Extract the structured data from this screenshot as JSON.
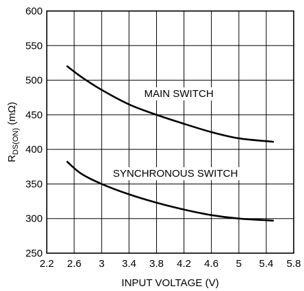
{
  "chart_data": {
    "type": "line",
    "title": "",
    "xlabel": "INPUT VOLTAGE (V)",
    "ylabel_parts": [
      "R",
      "DS(ON)",
      " (mΩ)"
    ],
    "xlim": [
      2.2,
      5.8
    ],
    "ylim": [
      250,
      600
    ],
    "grid": true,
    "xticks": [
      "2.2",
      "2.6",
      "3",
      "3.4",
      "3.8",
      "4.2",
      "4.6",
      "5",
      "5.4",
      "5.8"
    ],
    "yticks": [
      "250",
      "300",
      "350",
      "400",
      "450",
      "500",
      "550",
      "600"
    ],
    "series": [
      {
        "name": "MAIN SWITCH",
        "x": [
          2.5,
          2.7,
          3.0,
          3.4,
          3.8,
          4.2,
          4.6,
          5.0,
          5.5
        ],
        "y": [
          520,
          505,
          486,
          465,
          450,
          437,
          425,
          416,
          411
        ]
      },
      {
        "name": "SYNCHRONOUS SWITCH",
        "x": [
          2.5,
          2.7,
          3.0,
          3.4,
          3.8,
          4.2,
          4.6,
          5.0,
          5.5
        ],
        "y": [
          382,
          365,
          350,
          335,
          323,
          313,
          305,
          300,
          297
        ]
      }
    ]
  }
}
